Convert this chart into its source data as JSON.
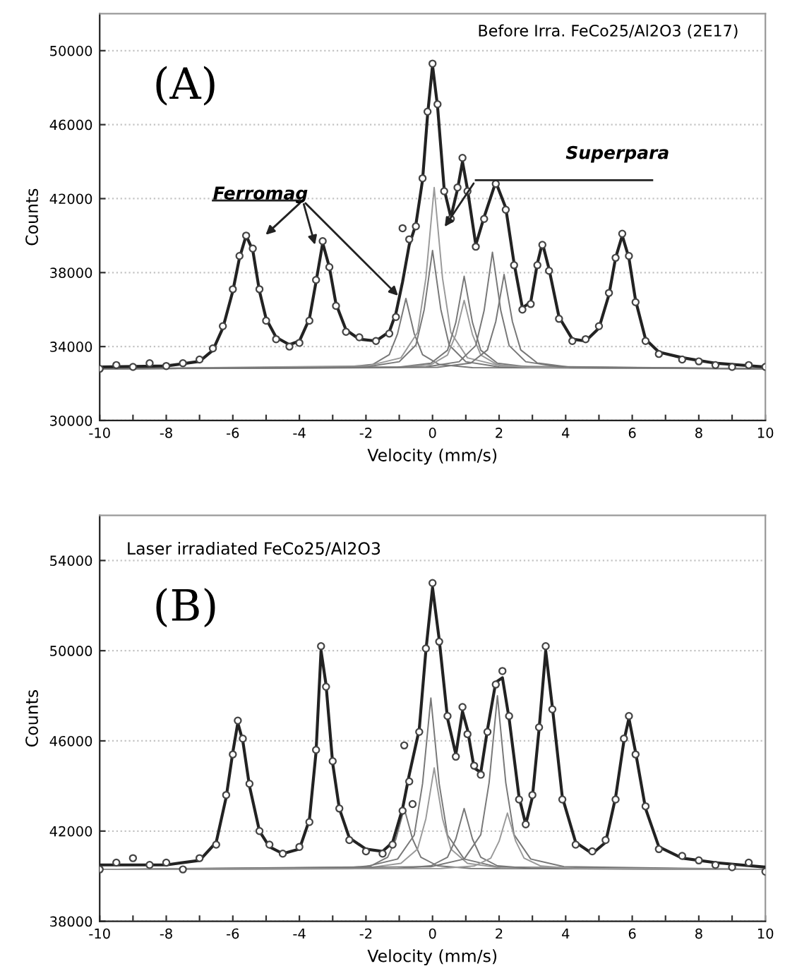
{
  "chart_data": [
    {
      "type": "line",
      "xlabel": "Velocity (mm/s)",
      "ylabel": "Counts",
      "xlim": [
        -10,
        10
      ],
      "ylim": [
        30000,
        52000
      ],
      "xticks": [
        -10,
        {
          "value": -9,
          "label": null
        },
        -8,
        {
          "value": -7,
          "label": null
        },
        -6,
        {
          "value": -5,
          "label": null
        },
        -4,
        {
          "value": -3,
          "label": null
        },
        -2,
        {
          "value": -1,
          "label": null
        },
        0,
        {
          "value": 1,
          "label": null
        },
        2,
        {
          "value": 3,
          "label": null
        },
        4,
        {
          "value": 5,
          "label": null
        },
        6,
        {
          "value": 7,
          "label": null
        },
        8,
        {
          "value": 9,
          "label": null
        },
        10
      ],
      "yticks": [
        30000,
        34000,
        38000,
        42000,
        46000,
        50000
      ],
      "grid": "y",
      "annotations": [
        "Before Irra. FeCo25/Al2O3 (2E17)",
        "(A)",
        {
          "text": "Ferromag",
          "x": -3.5,
          "y": 39300
        },
        "Superpara"
      ],
      "series": [
        {
          "type": "scatter",
          "marker": "circle",
          "color": "#444444",
          "x": [
            -10,
            -9.5,
            -9,
            -8.5,
            -8,
            -7.5,
            -7,
            -6.6,
            -6.3,
            -6.0,
            -5.8,
            -5.6,
            -5.4,
            -5.2,
            -5.0,
            -4.7,
            -4.3,
            -4.0,
            -3.7,
            -3.5,
            -3.3,
            -3.1,
            -2.9,
            -2.6,
            -2.2,
            -1.7,
            -1.3,
            -1.1,
            -0.9,
            -0.7,
            -0.5,
            -0.3,
            -0.15,
            0,
            0.15,
            0.35,
            0.55,
            0.75,
            0.9,
            1.05,
            1.3,
            1.55,
            1.9,
            2.2,
            2.45,
            2.7,
            2.95,
            3.15,
            3.3,
            3.5,
            3.8,
            4.2,
            4.6,
            5.0,
            5.3,
            5.5,
            5.7,
            5.9,
            6.1,
            6.4,
            6.8,
            7.5,
            8,
            8.5,
            9,
            9.5,
            10
          ],
          "values": [
            32800,
            33000,
            32900,
            33100,
            32950,
            33100,
            33300,
            33900,
            35100,
            37100,
            38900,
            40000,
            39300,
            37100,
            35400,
            34400,
            34000,
            34200,
            35400,
            37600,
            39700,
            38300,
            36200,
            34800,
            34500,
            34300,
            34700,
            35600,
            40400,
            39800,
            40500,
            43100,
            46700,
            49300,
            47100,
            42400,
            40900,
            42600,
            44200,
            42400,
            39400,
            40900,
            42800,
            41400,
            38400,
            36000,
            36300,
            38400,
            39500,
            38100,
            35500,
            34300,
            34400,
            35100,
            36900,
            38800,
            40100,
            38900,
            36400,
            34300,
            33600,
            33300,
            33200,
            33000,
            32900,
            33000,
            32900
          ]
        },
        {
          "type": "line",
          "color": "#222222",
          "x": [
            -10,
            -8,
            -7,
            -6.6,
            -6.3,
            -6.0,
            -5.8,
            -5.6,
            -5.4,
            -5.2,
            -5.0,
            -4.7,
            -4.3,
            -4.0,
            -3.7,
            -3.5,
            -3.3,
            -3.1,
            -2.9,
            -2.6,
            -2.2,
            -1.7,
            -1.3,
            -1.1,
            -0.9,
            -0.7,
            -0.5,
            -0.3,
            -0.15,
            0,
            0.15,
            0.35,
            0.55,
            0.75,
            0.9,
            1.05,
            1.3,
            1.55,
            1.9,
            2.2,
            2.45,
            2.7,
            2.95,
            3.15,
            3.3,
            3.5,
            3.8,
            4.2,
            4.6,
            5.0,
            5.3,
            5.5,
            5.7,
            5.9,
            6.1,
            6.4,
            6.8,
            7.5,
            8.5,
            10
          ],
          "values": [
            32900,
            32950,
            33200,
            33800,
            35000,
            37000,
            38800,
            40000,
            39200,
            37000,
            35500,
            34500,
            34100,
            34300,
            35500,
            37500,
            39600,
            38300,
            36300,
            34900,
            34400,
            34300,
            34800,
            35800,
            37500,
            39500,
            40600,
            43000,
            46500,
            49200,
            47000,
            42500,
            41000,
            42500,
            44000,
            42500,
            39500,
            41000,
            42900,
            41500,
            38500,
            36100,
            36400,
            38500,
            39600,
            38200,
            35600,
            34400,
            34300,
            35000,
            36800,
            38800,
            40000,
            38800,
            36500,
            34400,
            33700,
            33400,
            33100,
            32900
          ]
        },
        {
          "type": "line",
          "color": "#777777",
          "x": [
            -10,
            -2.8,
            -1.8,
            -1.3,
            -1.05,
            -0.8,
            -0.55,
            -0.3,
            0.2,
            1.2,
            10
          ],
          "values": [
            32800,
            32860,
            33030,
            33560,
            34700,
            36600,
            34700,
            33560,
            33030,
            32860,
            32800
          ]
        },
        {
          "type": "line",
          "color": "#777777",
          "x": [
            -10,
            -2,
            -1,
            -0.5,
            -0.25,
            0,
            0.25,
            0.5,
            1,
            2,
            10
          ],
          "values": [
            32800,
            32900,
            33180,
            34080,
            36000,
            39200,
            36000,
            34080,
            33180,
            32900,
            32800
          ]
        },
        {
          "type": "line",
          "color": "#999999",
          "x": [
            -10,
            -1.95,
            -0.95,
            -0.45,
            -0.2,
            0.05,
            0.3,
            0.55,
            1.05,
            2.05,
            10
          ],
          "values": [
            32800,
            32950,
            33390,
            34760,
            37700,
            42600,
            37700,
            34760,
            33390,
            32950,
            32800
          ]
        },
        {
          "type": "line",
          "color": "#777777",
          "x": [
            -10,
            -1.05,
            -0.05,
            0.45,
            0.7,
            0.95,
            1.2,
            1.45,
            1.95,
            2.95,
            10
          ],
          "values": [
            32800,
            32880,
            33100,
            33800,
            35300,
            37800,
            35300,
            33800,
            33100,
            32880,
            32800
          ]
        },
        {
          "type": "line",
          "color": "#999999",
          "x": [
            -10,
            -1.05,
            -0.05,
            0.45,
            0.7,
            0.95,
            1.2,
            1.45,
            1.95,
            2.95,
            10
          ],
          "values": [
            32800,
            32860,
            33020,
            33540,
            34650,
            36500,
            34650,
            33540,
            33020,
            32860,
            32800
          ]
        },
        {
          "type": "line",
          "color": "#777777",
          "x": [
            -10,
            -0.2,
            0.8,
            1.3,
            1.55,
            1.8,
            2.05,
            2.3,
            2.8,
            3.8,
            10
          ],
          "values": [
            32800,
            32900,
            33180,
            34060,
            35950,
            39100,
            35950,
            34060,
            33180,
            32900,
            32800
          ]
        },
        {
          "type": "line",
          "color": "#777777",
          "x": [
            -10,
            0.15,
            1.15,
            1.65,
            1.9,
            2.15,
            2.4,
            2.65,
            3.15,
            4.15,
            10
          ],
          "values": [
            32800,
            32880,
            33110,
            33820,
            35350,
            37900,
            35350,
            33820,
            33110,
            32880,
            32800
          ]
        }
      ]
    },
    {
      "type": "line",
      "xlabel": "Velocity (mm/s)",
      "ylabel": "Counts",
      "xlim": [
        -10,
        10
      ],
      "ylim": [
        38000,
        56000
      ],
      "xticks": [
        -10,
        {
          "value": -9,
          "label": null
        },
        -8,
        {
          "value": -7,
          "label": null
        },
        -6,
        {
          "value": -5,
          "label": null
        },
        -4,
        {
          "value": -3,
          "label": null
        },
        -2,
        {
          "value": -1,
          "label": null
        },
        0,
        {
          "value": 1,
          "label": null
        },
        2,
        {
          "value": 3,
          "label": null
        },
        4,
        {
          "value": 5,
          "label": null
        },
        6,
        {
          "value": 7,
          "label": null
        },
        8,
        {
          "value": 9,
          "label": null
        },
        10
      ],
      "yticks": [
        38000,
        42000,
        46000,
        50000,
        54000
      ],
      "grid": "y",
      "annotations": [
        "Laser irradiated FeCo25/Al2O3",
        "(B)"
      ],
      "series": [
        {
          "type": "scatter",
          "marker": "circle",
          "color": "#444444",
          "x": [
            -10,
            -9.5,
            -9,
            -8.5,
            -8,
            -7.5,
            -7,
            -6.5,
            -6.2,
            -6.0,
            -5.85,
            -5.7,
            -5.5,
            -5.2,
            -4.9,
            -4.5,
            -4.0,
            -3.7,
            -3.5,
            -3.35,
            -3.2,
            -3.0,
            -2.8,
            -2.5,
            -2.0,
            -1.5,
            -1.2,
            -0.9,
            -0.85,
            -0.7,
            -0.6,
            -0.4,
            -0.2,
            0,
            0.2,
            0.45,
            0.7,
            0.9,
            1.05,
            1.25,
            1.45,
            1.65,
            1.9,
            2.1,
            2.3,
            2.6,
            2.8,
            3.0,
            3.2,
            3.4,
            3.6,
            3.9,
            4.3,
            4.8,
            5.2,
            5.5,
            5.75,
            5.9,
            6.1,
            6.4,
            6.8,
            7.5,
            8,
            8.5,
            9,
            9.5,
            10
          ],
          "values": [
            40300,
            40600,
            40800,
            40500,
            40600,
            40300,
            40800,
            41400,
            43600,
            45400,
            46900,
            46100,
            44100,
            42000,
            41400,
            41000,
            41300,
            42400,
            45600,
            50200,
            48400,
            45100,
            43000,
            41600,
            41100,
            41000,
            41400,
            42900,
            45800,
            44200,
            43200,
            46400,
            50100,
            53000,
            50400,
            47100,
            45300,
            47500,
            46300,
            44900,
            44500,
            46400,
            48500,
            49100,
            47100,
            43400,
            42300,
            43600,
            46600,
            50200,
            47400,
            43400,
            41400,
            41100,
            41600,
            43400,
            46100,
            47100,
            45400,
            43100,
            41200,
            40900,
            40700,
            40500,
            40400,
            40600,
            40200
          ]
        },
        {
          "type": "line",
          "color": "#222222",
          "x": [
            -10,
            -8,
            -7,
            -6.5,
            -6.2,
            -6.0,
            -5.85,
            -5.7,
            -5.5,
            -5.2,
            -4.9,
            -4.5,
            -4.0,
            -3.7,
            -3.5,
            -3.35,
            -3.2,
            -3.0,
            -2.8,
            -2.5,
            -2.0,
            -1.5,
            -1.2,
            -0.9,
            -0.7,
            -0.4,
            -0.2,
            0,
            0.2,
            0.45,
            0.7,
            0.9,
            1.05,
            1.25,
            1.45,
            1.65,
            1.9,
            2.1,
            2.3,
            2.6,
            2.8,
            3.0,
            3.2,
            3.4,
            3.6,
            3.9,
            4.3,
            4.8,
            5.2,
            5.5,
            5.75,
            5.9,
            6.1,
            6.4,
            6.8,
            7.5,
            8.5,
            10
          ],
          "values": [
            40500,
            40500,
            40700,
            41500,
            43500,
            45500,
            46800,
            46000,
            44000,
            42000,
            41300,
            41000,
            41200,
            42500,
            45500,
            50000,
            48500,
            45000,
            43000,
            41700,
            41200,
            41100,
            41500,
            43000,
            44500,
            46500,
            50000,
            52800,
            50500,
            47000,
            45400,
            47300,
            46500,
            44800,
            44600,
            46500,
            48600,
            48800,
            47000,
            43500,
            42300,
            43500,
            46500,
            50000,
            47500,
            43500,
            41500,
            41000,
            41500,
            43500,
            46000,
            47000,
            45500,
            43000,
            41300,
            40800,
            40600,
            40400
          ]
        },
        {
          "type": "line",
          "color": "#777777",
          "x": [
            -10,
            -2.85,
            -1.85,
            -1.35,
            -1.1,
            -0.85,
            -0.6,
            -0.35,
            0.15,
            1.15,
            10
          ],
          "values": [
            40300,
            40340,
            40460,
            40840,
            41650,
            43000,
            41650,
            40840,
            40460,
            40340,
            40300
          ]
        },
        {
          "type": "line",
          "color": "#777777",
          "x": [
            -10,
            -2.05,
            -1.05,
            -0.55,
            -0.3,
            -0.05,
            0.2,
            0.45,
            0.95,
            1.95,
            10
          ],
          "values": [
            40300,
            40410,
            40760,
            41820,
            44100,
            47900,
            44100,
            41820,
            40760,
            40410,
            40300
          ]
        },
        {
          "type": "line",
          "color": "#999999",
          "x": [
            -10,
            -1.95,
            -0.95,
            -0.45,
            -0.2,
            0.05,
            0.3,
            0.55,
            1.05,
            2.05,
            10
          ],
          "values": [
            40300,
            40370,
            40570,
            41200,
            42550,
            44800,
            42550,
            41200,
            40570,
            40370,
            40300
          ]
        },
        {
          "type": "line",
          "color": "#777777",
          "x": [
            -10,
            -1.05,
            -0.05,
            0.45,
            0.7,
            0.95,
            1.2,
            1.45,
            1.95,
            2.95,
            10
          ],
          "values": [
            40300,
            40340,
            40460,
            40840,
            41650,
            43000,
            41650,
            40840,
            40460,
            40340,
            40300
          ]
        },
        {
          "type": "line",
          "color": "#777777",
          "x": [
            -10,
            -0.05,
            0.95,
            1.45,
            1.7,
            1.95,
            2.2,
            2.45,
            2.95,
            3.95,
            10
          ],
          "values": [
            40300,
            40420,
            40760,
            41840,
            44150,
            48000,
            44150,
            41840,
            40760,
            40420,
            40300
          ]
        },
        {
          "type": "line",
          "color": "#999999",
          "x": [
            -10,
            0.25,
            1.25,
            1.75,
            2.0,
            2.25,
            2.5,
            2.75,
            3.25,
            4.25,
            10
          ],
          "values": [
            40300,
            40340,
            40450,
            40800,
            41550,
            42800,
            41550,
            40800,
            40450,
            40340,
            40300
          ]
        }
      ]
    }
  ]
}
